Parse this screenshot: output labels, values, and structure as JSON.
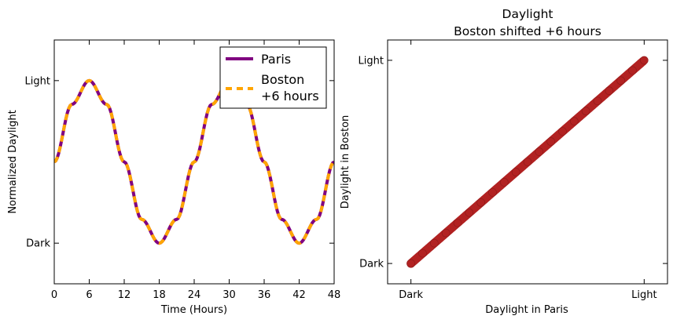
{
  "chart_data": [
    {
      "type": "line",
      "title": "",
      "xlabel": "Time (Hours)",
      "ylabel": "Normalized Daylight",
      "xlim": [
        0,
        48
      ],
      "ylim": [
        -1.5,
        1.5
      ],
      "xticks": [
        0,
        6,
        12,
        18,
        24,
        30,
        36,
        42,
        48
      ],
      "xtick_labels": [
        "0",
        "6",
        "12",
        "18",
        "24",
        "30",
        "36",
        "42",
        "48"
      ],
      "yticks": [
        -1,
        1
      ],
      "ytick_labels": [
        "Dark",
        "Light"
      ],
      "legend_position": "top-right",
      "series": [
        {
          "name": "Paris",
          "color": "#800080",
          "style": "solid",
          "x": [
            0,
            3,
            6,
            9,
            12,
            15,
            18,
            21,
            24,
            27,
            30,
            33,
            36,
            39,
            42,
            45,
            48
          ],
          "y": [
            0,
            0.707,
            1,
            0.707,
            0,
            -0.707,
            -1,
            -0.707,
            0,
            0.707,
            1,
            0.707,
            0,
            -0.707,
            -1,
            -0.707,
            0
          ]
        },
        {
          "name": "Boston\n+6 hours",
          "legend_lines": [
            "Boston",
            "+6 hours"
          ],
          "color": "#FFA500",
          "style": "dashed",
          "x": [
            0,
            3,
            6,
            9,
            12,
            15,
            18,
            21,
            24,
            27,
            30,
            33,
            36,
            39,
            42,
            45,
            48
          ],
          "y": [
            0,
            0.707,
            1,
            0.707,
            0,
            -0.707,
            -1,
            -0.707,
            0,
            0.707,
            1,
            0.707,
            0,
            -0.707,
            -1,
            -0.707,
            0
          ]
        }
      ]
    },
    {
      "type": "scatter",
      "title": "Daylight",
      "subtitle": "Boston shifted +6 hours",
      "xlabel": "Daylight in Paris",
      "ylabel": "Daylight in Boston",
      "xlim": [
        -1.2,
        1.2
      ],
      "ylim": [
        -1.2,
        1.2
      ],
      "xticks": [
        -1,
        1
      ],
      "xtick_labels": [
        "Dark",
        "Light"
      ],
      "yticks": [
        -1,
        1
      ],
      "ytick_labels": [
        "Dark",
        "Light"
      ],
      "color": "#B22222",
      "x": [
        -1,
        -0.9,
        -0.8,
        -0.7,
        -0.6,
        -0.5,
        -0.4,
        -0.3,
        -0.2,
        -0.1,
        0,
        0.1,
        0.2,
        0.3,
        0.4,
        0.5,
        0.6,
        0.7,
        0.8,
        0.9,
        1
      ],
      "y": [
        -1,
        -0.9,
        -0.8,
        -0.7,
        -0.6,
        -0.5,
        -0.4,
        -0.3,
        -0.2,
        -0.1,
        0,
        0.1,
        0.2,
        0.3,
        0.4,
        0.5,
        0.6,
        0.7,
        0.8,
        0.9,
        1
      ]
    }
  ]
}
